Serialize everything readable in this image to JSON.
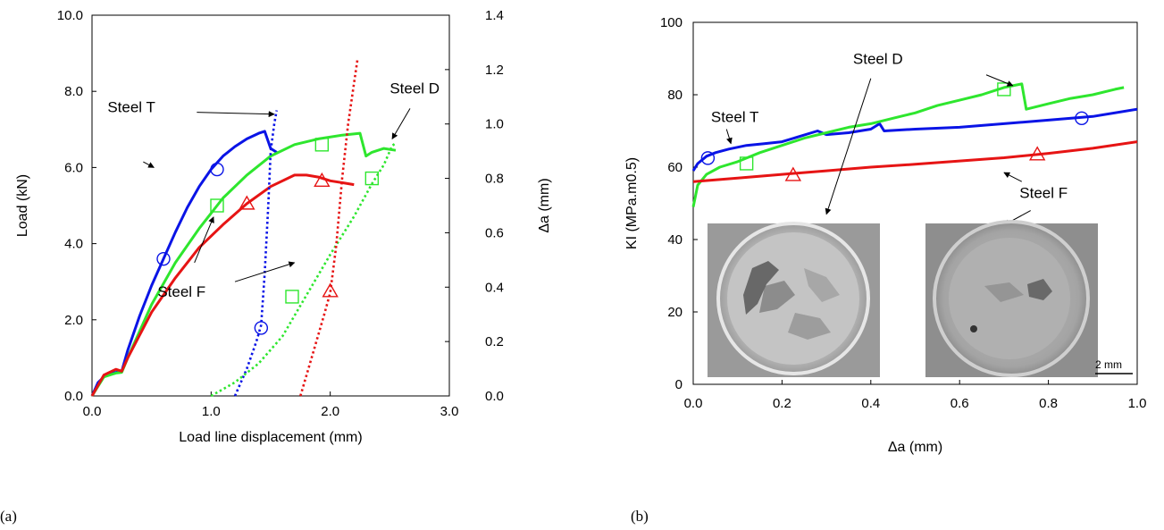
{
  "colors": {
    "steel_T": "#0a14e6",
    "steel_D": "#2ee62e",
    "steel_F": "#e61414"
  },
  "panel_a_label": "(a)",
  "panel_b_label": "(b)",
  "scale_bar_label": "2 mm",
  "chart_data": [
    {
      "type": "line",
      "xlabel": "Load line displacement (mm)",
      "ylabel": "Load (kN)",
      "y2label": "Δa (mm)",
      "xlim": [
        0,
        3.0
      ],
      "ylim": [
        0,
        10.0
      ],
      "y2lim": [
        0,
        1.4
      ],
      "xticks": [
        "0.0",
        "1.0",
        "2.0",
        "3.0"
      ],
      "yticks": [
        "0.0",
        "2.0",
        "4.0",
        "6.0",
        "8.0",
        "10.0"
      ],
      "y2ticks": [
        "0.0",
        "0.2",
        "0.4",
        "0.6",
        "0.8",
        "1.0",
        "1.2",
        "1.4"
      ],
      "grid": false,
      "series": [
        {
          "name": "Steel T",
          "color_key": "steel_T",
          "axis": "load",
          "style": "solid",
          "marker": "circle",
          "x": [
            0.0,
            0.05,
            0.1,
            0.15,
            0.2,
            0.25,
            0.3,
            0.4,
            0.5,
            0.6,
            0.7,
            0.8,
            0.9,
            1.0,
            1.1,
            1.2,
            1.3,
            1.4,
            1.45,
            1.5,
            1.55
          ],
          "y": [
            0.0,
            0.35,
            0.5,
            0.6,
            0.62,
            0.65,
            1.2,
            2.1,
            2.9,
            3.6,
            4.3,
            4.95,
            5.5,
            5.95,
            6.3,
            6.55,
            6.75,
            6.9,
            6.95,
            6.5,
            6.4
          ],
          "markers": [
            [
              0.6,
              3.6
            ],
            [
              1.05,
              5.95
            ]
          ]
        },
        {
          "name": "Steel D",
          "color_key": "steel_D",
          "axis": "load",
          "style": "solid",
          "marker": "square",
          "x": [
            0.0,
            0.1,
            0.2,
            0.25,
            0.3,
            0.5,
            0.7,
            0.9,
            1.1,
            1.3,
            1.5,
            1.7,
            1.9,
            2.1,
            2.25,
            2.3,
            2.35,
            2.45,
            2.55
          ],
          "y": [
            0.0,
            0.5,
            0.6,
            0.62,
            1.0,
            2.4,
            3.5,
            4.4,
            5.2,
            5.8,
            6.3,
            6.6,
            6.75,
            6.85,
            6.9,
            6.3,
            6.4,
            6.5,
            6.45
          ],
          "markers": [
            [
              1.05,
              5.0
            ],
            [
              1.93,
              6.6
            ]
          ]
        },
        {
          "name": "Steel F",
          "color_key": "steel_F",
          "axis": "load",
          "style": "solid",
          "marker": "triangle",
          "x": [
            0.0,
            0.1,
            0.2,
            0.25,
            0.3,
            0.5,
            0.7,
            0.9,
            1.1,
            1.3,
            1.5,
            1.7,
            1.8,
            1.9,
            2.0,
            2.1,
            2.2
          ],
          "y": [
            0.0,
            0.55,
            0.7,
            0.65,
            1.0,
            2.2,
            3.1,
            3.9,
            4.5,
            5.05,
            5.5,
            5.8,
            5.8,
            5.75,
            5.65,
            5.6,
            5.55
          ],
          "markers": [
            [
              1.3,
              5.05
            ],
            [
              1.93,
              5.65
            ]
          ]
        },
        {
          "name": "Steel T",
          "color_key": "steel_T",
          "axis": "da",
          "style": "dotted",
          "marker": "circle",
          "x": [
            1.2,
            1.3,
            1.38,
            1.42,
            1.45,
            1.48,
            1.5,
            1.53,
            1.55
          ],
          "y": [
            0.0,
            0.1,
            0.2,
            0.26,
            0.45,
            0.7,
            0.9,
            1.0,
            1.05
          ],
          "markers": [
            [
              1.42,
              0.25
            ]
          ]
        },
        {
          "name": "Steel D",
          "color_key": "steel_D",
          "axis": "da",
          "style": "dotted",
          "marker": "square",
          "x": [
            1.0,
            1.2,
            1.4,
            1.6,
            1.8,
            2.0,
            2.2,
            2.35,
            2.45,
            2.52,
            2.55
          ],
          "y": [
            0.0,
            0.05,
            0.12,
            0.22,
            0.37,
            0.52,
            0.66,
            0.78,
            0.85,
            0.92,
            0.93
          ],
          "markers": [
            [
              1.68,
              0.365
            ],
            [
              2.35,
              0.8
            ]
          ]
        },
        {
          "name": "Steel F",
          "color_key": "steel_F",
          "axis": "da",
          "style": "dotted",
          "marker": "triangle",
          "x": [
            1.75,
            1.85,
            1.95,
            2.0,
            2.05,
            2.1,
            2.15,
            2.2,
            2.23
          ],
          "y": [
            0.0,
            0.15,
            0.3,
            0.38,
            0.55,
            0.8,
            1.0,
            1.15,
            1.24
          ],
          "markers": [
            [
              2.0,
              0.385
            ]
          ]
        }
      ],
      "annotations": [
        {
          "text": "Steel T",
          "x": 0.13,
          "y": 7.45,
          "arrows": [
            [
              0.43,
              6.15,
              0.52,
              6.0
            ],
            [
              0.88,
              7.45,
              1.53,
              7.4
            ]
          ]
        },
        {
          "text": "Steel D",
          "x": 2.5,
          "y": 7.95,
          "arrows": [
            [
              2.67,
              7.55,
              2.52,
              6.75
            ]
          ]
        },
        {
          "text": "Steel F",
          "x": 0.55,
          "y": 2.6,
          "arrows": [
            [
              0.86,
              3.5,
              1.02,
              4.7
            ],
            [
              1.2,
              3.0,
              1.7,
              3.5
            ]
          ]
        }
      ]
    },
    {
      "type": "line",
      "xlabel": "Δa (mm)",
      "ylabel": "KI (MPa.m0.5)",
      "xlim": [
        0,
        1.0
      ],
      "ylim": [
        0,
        100
      ],
      "xticks": [
        "0.0",
        "0.2",
        "0.4",
        "0.6",
        "0.8",
        "1.0"
      ],
      "yticks": [
        "0",
        "20",
        "40",
        "60",
        "80",
        "100"
      ],
      "grid": false,
      "series": [
        {
          "name": "Steel T",
          "color_key": "steel_T",
          "marker": "circle",
          "x": [
            0.0,
            0.01,
            0.03,
            0.05,
            0.08,
            0.12,
            0.16,
            0.2,
            0.24,
            0.28,
            0.3,
            0.35,
            0.4,
            0.42,
            0.43,
            0.5,
            0.6,
            0.7,
            0.8,
            0.9,
            1.0
          ],
          "y": [
            59,
            61,
            63,
            64,
            65,
            66,
            66.5,
            67,
            68.5,
            70,
            69,
            69.5,
            70.5,
            72,
            70,
            70.5,
            71,
            72,
            73,
            74,
            76
          ],
          "markers": [
            [
              0.033,
              62.5
            ],
            [
              0.875,
              73.5
            ]
          ]
        },
        {
          "name": "Steel D",
          "color_key": "steel_D",
          "marker": "square",
          "x": [
            0.0,
            0.01,
            0.03,
            0.06,
            0.1,
            0.15,
            0.2,
            0.25,
            0.3,
            0.35,
            0.4,
            0.45,
            0.5,
            0.55,
            0.6,
            0.65,
            0.7,
            0.74,
            0.75,
            0.8,
            0.85,
            0.9,
            0.95,
            0.97
          ],
          "y": [
            49,
            55,
            58,
            60,
            61.5,
            64,
            66,
            68,
            69.5,
            71,
            72,
            73.5,
            75,
            77,
            78.5,
            80,
            82,
            83,
            76,
            77.5,
            79,
            80,
            81.5,
            82
          ],
          "markers": [
            [
              0.12,
              61
            ],
            [
              0.7,
              81.5
            ]
          ]
        },
        {
          "name": "Steel F",
          "color_key": "steel_F",
          "marker": "triangle",
          "x": [
            0.0,
            0.1,
            0.2,
            0.3,
            0.4,
            0.5,
            0.6,
            0.7,
            0.8,
            0.9,
            1.0
          ],
          "y": [
            56,
            57,
            58,
            59,
            60,
            60.8,
            61.7,
            62.6,
            63.8,
            65.2,
            67
          ],
          "markers": [
            [
              0.225,
              57.8
            ],
            [
              0.775,
              63.5
            ]
          ]
        }
      ],
      "annotations": [
        {
          "text": "Steel T",
          "x": 0.04,
          "y": 72.5,
          "arrows": [
            [
              0.075,
              70.5,
              0.085,
              66.5
            ]
          ]
        },
        {
          "text": "Steel D",
          "x": 0.36,
          "y": 88.5,
          "arrows": [
            [
              0.66,
              85.5,
              0.72,
              82.5
            ],
            [
              0.4,
              84.5,
              0.3,
              47
            ]
          ]
        },
        {
          "text": "Steel F",
          "x": 0.735,
          "y": 51.5,
          "arrows": [
            [
              0.74,
              56,
              0.7,
              58.5
            ],
            [
              0.76,
              48,
              0.7,
              44
            ]
          ]
        }
      ]
    }
  ]
}
